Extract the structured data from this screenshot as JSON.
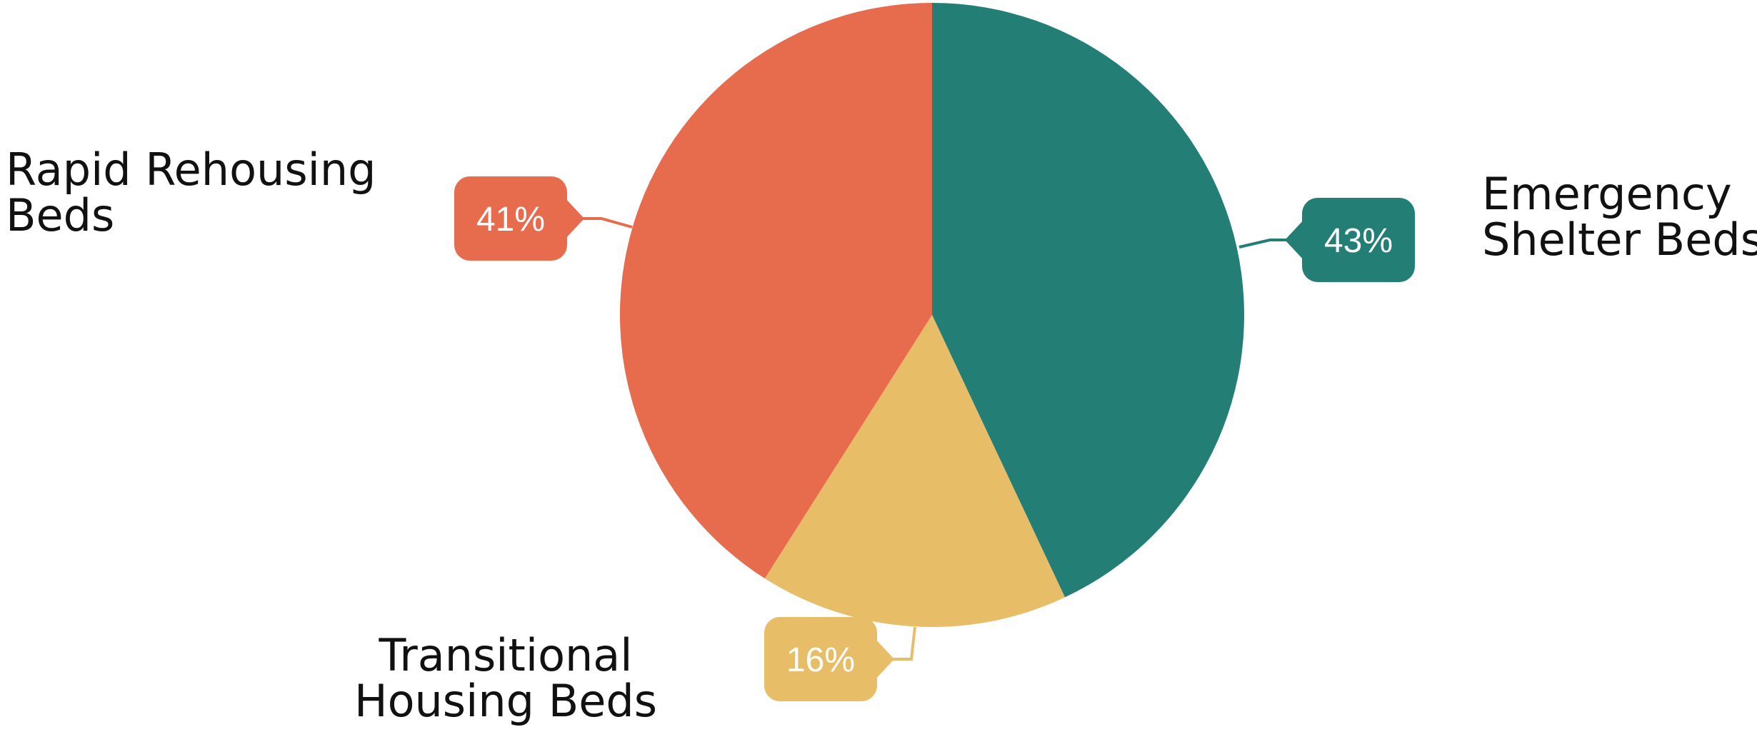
{
  "chart_data": {
    "type": "pie",
    "slices": [
      {
        "label_lines": [
          "Emergency",
          "Shelter Beds"
        ],
        "value": 43,
        "value_label": "43%",
        "color": "#237f76"
      },
      {
        "label_lines": [
          "Transitional",
          "Housing Beds"
        ],
        "value": 16,
        "value_label": "16%",
        "color": "#e8bd68"
      },
      {
        "label_lines": [
          "Rapid Rehousing",
          "Beds"
        ],
        "value": 41,
        "value_label": "41%",
        "color": "#e76c4e"
      }
    ],
    "start_angle": "12 o'clock",
    "direction": "clockwise",
    "legend": "none"
  }
}
